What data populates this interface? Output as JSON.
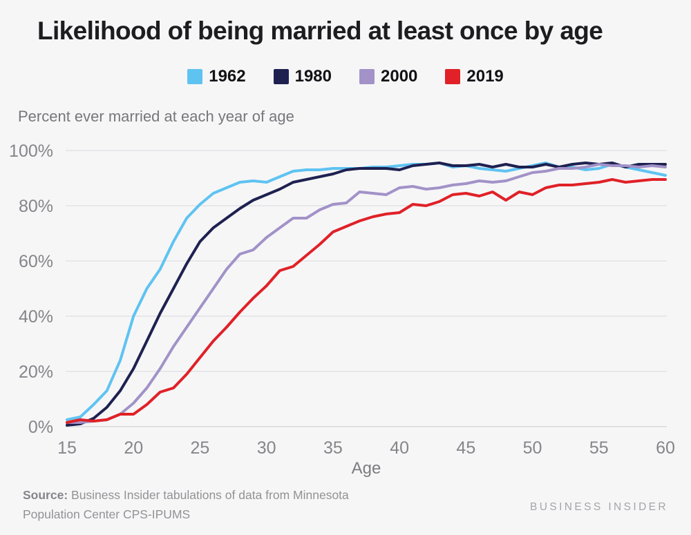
{
  "header": {
    "title": "Likelihood of being married at least once by age",
    "subtitle": "Percent ever married at each year of age"
  },
  "chart_data": {
    "type": "line",
    "title": "Likelihood of being married at least once by age",
    "subtitle": "Percent ever married at each year of age",
    "xlabel": "Age",
    "ylabel": "Percent ever married",
    "xlim": [
      15,
      60
    ],
    "ylim": [
      0,
      100
    ],
    "x_ticks": [
      15,
      20,
      25,
      30,
      35,
      40,
      45,
      50,
      55,
      60
    ],
    "y_ticks": [
      0,
      20,
      40,
      60,
      80,
      100
    ],
    "y_tick_labels": [
      "0%",
      "20%",
      "40%",
      "60%",
      "80%",
      "100%"
    ],
    "grid": "horizontal",
    "legend_position": "top",
    "x": [
      15,
      16,
      17,
      18,
      19,
      20,
      21,
      22,
      23,
      24,
      25,
      26,
      27,
      28,
      29,
      30,
      31,
      32,
      33,
      34,
      35,
      36,
      37,
      38,
      39,
      40,
      41,
      42,
      43,
      44,
      45,
      46,
      47,
      48,
      49,
      50,
      51,
      52,
      53,
      54,
      55,
      56,
      57,
      58,
      59,
      60
    ],
    "series": [
      {
        "name": "1962",
        "color": "#5fc3f1",
        "values": [
          2.5,
          3.5,
          8,
          13,
          24,
          40,
          50,
          57,
          67,
          75.5,
          80.5,
          84.5,
          86.5,
          88.5,
          89,
          88.5,
          90.5,
          92.5,
          93,
          93,
          93.5,
          93.5,
          93.5,
          94,
          94,
          94.5,
          95,
          95,
          95.5,
          94,
          94.5,
          93.5,
          93,
          92.5,
          93.5,
          94.5,
          95.5,
          94,
          94,
          93,
          93.5,
          95,
          94,
          93,
          92,
          91
        ]
      },
      {
        "name": "1980",
        "color": "#1e2150",
        "values": [
          0.5,
          1,
          3,
          7,
          13,
          21,
          31,
          41,
          50,
          59,
          67,
          72,
          75.5,
          79,
          82,
          84,
          86,
          88.5,
          89.5,
          90.5,
          91.5,
          93,
          93.5,
          93.5,
          93.5,
          93,
          94.5,
          95,
          95.5,
          94.5,
          94.5,
          95,
          94,
          95,
          94,
          94,
          95,
          94,
          95,
          95.5,
          95,
          95.5,
          94,
          95,
          95,
          95
        ]
      },
      {
        "name": "2000",
        "color": "#a292c8",
        "values": [
          1.5,
          1.5,
          2,
          2.5,
          4.5,
          8.5,
          14,
          21,
          29,
          36,
          43,
          50,
          57,
          62.5,
          64,
          68.5,
          72,
          75.5,
          75.5,
          78.5,
          80.5,
          81,
          85,
          84.5,
          84,
          86.5,
          87,
          86,
          86.5,
          87.5,
          88,
          89,
          88.5,
          89,
          90.5,
          92,
          92.5,
          93.5,
          93.5,
          94,
          95,
          94.5,
          94.5,
          94,
          94.5,
          94
        ]
      },
      {
        "name": "2019",
        "color": "#e02127",
        "values": [
          1.5,
          2.5,
          2,
          2.5,
          4.5,
          4.5,
          8,
          12.5,
          14,
          19,
          25,
          31,
          36,
          41.5,
          46.5,
          51,
          56.5,
          58,
          62,
          66,
          70.5,
          72.5,
          74.5,
          76,
          77,
          77.5,
          80.5,
          80,
          81.5,
          84,
          84.5,
          83.5,
          85,
          82,
          85,
          84,
          86.5,
          87.5,
          87.5,
          88,
          88.5,
          89.5,
          88.5,
          89,
          89.5,
          89.5
        ]
      }
    ]
  },
  "footer": {
    "source_label": "Source:",
    "source_text": " Business Insider tabulations of data from Minnesota Population Center CPS-IPUMS",
    "brand": "BUSINESS INSIDER"
  },
  "style": {
    "background": "#f6f6f7",
    "gridline_color": "#e4e4e6",
    "axisline_color": "#d9d9db",
    "tick_label_color": "#85858a",
    "title_color": "#1d1d20",
    "line_width": 4
  }
}
